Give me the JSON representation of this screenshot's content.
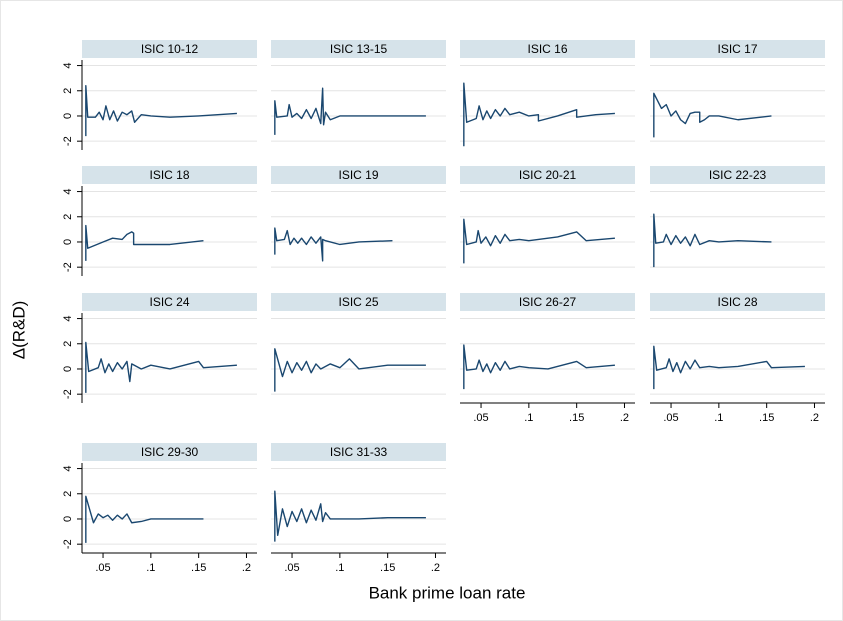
{
  "chart_data": {
    "type": "line",
    "ylabel": "Δ(R&D)",
    "xlabel": "Bank prime loan rate",
    "xlim": [
      0.028,
      0.211
    ],
    "ylim": [
      -2.7,
      4.6
    ],
    "xticks": [
      {
        "value": 0.05,
        "label": ".05"
      },
      {
        "value": 0.1,
        "label": ".1"
      },
      {
        "value": 0.15,
        "label": ".15"
      },
      {
        "value": 0.2,
        "label": ".2"
      }
    ],
    "yticks": [
      -2,
      0,
      2,
      4
    ],
    "grid": true,
    "color": "#1a476f",
    "panels": [
      {
        "title": "ISIC 10-12",
        "x": [
          0.032,
          0.032,
          0.034,
          0.042,
          0.046,
          0.05,
          0.053,
          0.057,
          0.061,
          0.065,
          0.07,
          0.075,
          0.08,
          0.083,
          0.09,
          0.1,
          0.12,
          0.15,
          0.19
        ],
        "values": [
          -1.6,
          2.4,
          -0.1,
          -0.1,
          0.3,
          -0.3,
          0.8,
          -0.3,
          0.4,
          -0.4,
          0.3,
          0.1,
          0.4,
          -0.5,
          0.1,
          0.0,
          -0.1,
          0.0,
          0.2
        ]
      },
      {
        "title": "ISIC 13-15",
        "x": [
          0.032,
          0.032,
          0.034,
          0.045,
          0.047,
          0.05,
          0.055,
          0.06,
          0.065,
          0.07,
          0.075,
          0.08,
          0.082,
          0.083,
          0.085,
          0.09,
          0.1,
          0.12,
          0.15,
          0.19
        ],
        "values": [
          -1.5,
          1.2,
          -0.1,
          0.0,
          0.9,
          -0.1,
          0.2,
          -0.2,
          0.5,
          -0.2,
          0.6,
          -0.6,
          2.2,
          -0.7,
          0.3,
          -0.3,
          0.0,
          0.0,
          0.0,
          0.0
        ]
      },
      {
        "title": "ISIC 16",
        "x": [
          0.032,
          0.032,
          0.035,
          0.045,
          0.048,
          0.052,
          0.056,
          0.06,
          0.065,
          0.07,
          0.075,
          0.08,
          0.09,
          0.1,
          0.11,
          0.11,
          0.13,
          0.15,
          0.15,
          0.17,
          0.19
        ],
        "values": [
          -2.4,
          2.6,
          -0.5,
          -0.2,
          0.8,
          -0.3,
          0.4,
          -0.2,
          0.5,
          0.0,
          0.6,
          0.1,
          0.3,
          0.0,
          0.1,
          -0.4,
          0.0,
          0.5,
          -0.1,
          0.1,
          0.2
        ]
      },
      {
        "title": "ISIC 17",
        "x": [
          0.032,
          0.032,
          0.04,
          0.045,
          0.05,
          0.055,
          0.06,
          0.065,
          0.07,
          0.075,
          0.08,
          0.08,
          0.085,
          0.09,
          0.1,
          0.12,
          0.155
        ],
        "values": [
          -1.7,
          1.8,
          0.6,
          0.9,
          0.0,
          0.4,
          -0.3,
          -0.6,
          0.2,
          0.3,
          0.3,
          -0.5,
          -0.3,
          0.0,
          0.0,
          -0.3,
          0.0
        ]
      },
      {
        "title": "ISIC 18",
        "x": [
          0.032,
          0.032,
          0.034,
          0.05,
          0.06,
          0.07,
          0.075,
          0.08,
          0.082,
          0.082,
          0.1,
          0.12,
          0.155
        ],
        "values": [
          -1.5,
          1.3,
          -0.5,
          0.0,
          0.3,
          0.2,
          0.6,
          0.8,
          0.7,
          -0.2,
          -0.2,
          -0.2,
          0.1
        ]
      },
      {
        "title": "ISIC 19",
        "x": [
          0.032,
          0.032,
          0.034,
          0.042,
          0.045,
          0.048,
          0.052,
          0.056,
          0.06,
          0.065,
          0.07,
          0.075,
          0.08,
          0.082,
          0.082,
          0.085,
          0.09,
          0.1,
          0.12,
          0.155
        ],
        "values": [
          -1.0,
          1.1,
          0.1,
          0.2,
          0.9,
          -0.2,
          0.3,
          -0.1,
          0.3,
          -0.2,
          0.4,
          -0.1,
          0.4,
          -1.5,
          0.2,
          0.1,
          0.0,
          -0.2,
          0.0,
          0.1
        ]
      },
      {
        "title": "ISIC 20-21",
        "x": [
          0.032,
          0.032,
          0.035,
          0.045,
          0.047,
          0.05,
          0.055,
          0.06,
          0.065,
          0.07,
          0.075,
          0.08,
          0.09,
          0.1,
          0.11,
          0.13,
          0.15,
          0.16,
          0.19
        ],
        "values": [
          -1.7,
          1.8,
          -0.2,
          0.0,
          0.9,
          -0.1,
          0.4,
          -0.3,
          0.5,
          -0.1,
          0.6,
          0.1,
          0.2,
          0.1,
          0.2,
          0.4,
          0.8,
          0.1,
          0.3
        ]
      },
      {
        "title": "ISIC 22-23",
        "x": [
          0.032,
          0.032,
          0.034,
          0.042,
          0.045,
          0.05,
          0.055,
          0.06,
          0.065,
          0.07,
          0.075,
          0.08,
          0.09,
          0.1,
          0.12,
          0.155
        ],
        "values": [
          -2.0,
          2.2,
          -0.1,
          0.0,
          0.6,
          -0.2,
          0.5,
          -0.1,
          0.4,
          -0.3,
          0.6,
          -0.2,
          0.1,
          0.0,
          0.1,
          0.0
        ]
      },
      {
        "title": "ISIC 24",
        "x": [
          0.032,
          0.032,
          0.035,
          0.045,
          0.048,
          0.052,
          0.056,
          0.06,
          0.065,
          0.07,
          0.075,
          0.078,
          0.08,
          0.09,
          0.1,
          0.12,
          0.15,
          0.155,
          0.19
        ],
        "values": [
          -1.9,
          2.1,
          -0.2,
          0.1,
          0.8,
          -0.3,
          0.4,
          -0.2,
          0.5,
          0.0,
          0.6,
          -1.0,
          0.4,
          0.0,
          0.3,
          0.0,
          0.6,
          0.1,
          0.3
        ]
      },
      {
        "title": "ISIC 25",
        "x": [
          0.032,
          0.032,
          0.04,
          0.045,
          0.05,
          0.055,
          0.06,
          0.065,
          0.07,
          0.075,
          0.08,
          0.09,
          0.1,
          0.11,
          0.12,
          0.15,
          0.19
        ],
        "values": [
          -1.8,
          1.6,
          -0.6,
          0.6,
          -0.3,
          0.5,
          -0.1,
          0.6,
          -0.3,
          0.4,
          0.0,
          0.4,
          0.1,
          0.8,
          0.0,
          0.3,
          0.3
        ]
      },
      {
        "title": "ISIC 26-27",
        "x": [
          0.032,
          0.032,
          0.035,
          0.045,
          0.048,
          0.052,
          0.056,
          0.06,
          0.065,
          0.07,
          0.075,
          0.08,
          0.09,
          0.1,
          0.12,
          0.15,
          0.16,
          0.19
        ],
        "values": [
          -1.6,
          1.9,
          -0.1,
          0.0,
          0.7,
          -0.2,
          0.4,
          -0.3,
          0.5,
          -0.1,
          0.6,
          0.0,
          0.2,
          0.1,
          0.0,
          0.6,
          0.1,
          0.3
        ]
      },
      {
        "title": "ISIC 28",
        "x": [
          0.032,
          0.032,
          0.035,
          0.045,
          0.048,
          0.052,
          0.056,
          0.06,
          0.065,
          0.07,
          0.075,
          0.08,
          0.09,
          0.1,
          0.12,
          0.15,
          0.155,
          0.19
        ],
        "values": [
          -1.6,
          1.8,
          -0.1,
          0.1,
          0.8,
          -0.2,
          0.5,
          -0.3,
          0.6,
          0.0,
          0.7,
          0.1,
          0.2,
          0.1,
          0.2,
          0.6,
          0.1,
          0.2
        ]
      },
      {
        "title": "ISIC 29-30",
        "x": [
          0.032,
          0.032,
          0.04,
          0.045,
          0.05,
          0.055,
          0.06,
          0.065,
          0.07,
          0.075,
          0.08,
          0.09,
          0.1,
          0.12,
          0.155
        ],
        "values": [
          -1.9,
          1.8,
          -0.3,
          0.4,
          0.1,
          0.3,
          -0.1,
          0.3,
          0.0,
          0.4,
          -0.3,
          -0.2,
          0.0,
          0.0,
          0.0
        ]
      },
      {
        "title": "ISIC 31-33",
        "x": [
          0.032,
          0.032,
          0.035,
          0.04,
          0.045,
          0.05,
          0.055,
          0.06,
          0.065,
          0.07,
          0.075,
          0.08,
          0.082,
          0.085,
          0.09,
          0.1,
          0.12,
          0.15,
          0.19
        ],
        "values": [
          -1.8,
          2.2,
          -1.3,
          0.8,
          -0.6,
          0.6,
          -0.2,
          0.8,
          -0.3,
          0.7,
          -0.1,
          1.2,
          -0.2,
          0.5,
          0.0,
          0.0,
          0.0,
          0.1,
          0.1
        ]
      }
    ]
  }
}
